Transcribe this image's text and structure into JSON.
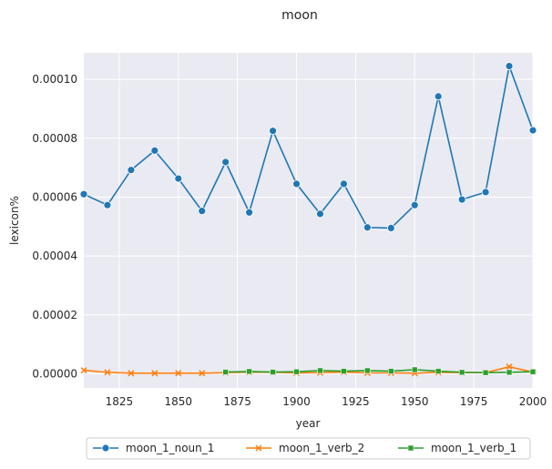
{
  "chart_data": {
    "type": "line",
    "title": "moon",
    "xlabel": "year",
    "ylabel": "lexicon%",
    "x": [
      1810,
      1820,
      1830,
      1840,
      1850,
      1860,
      1870,
      1880,
      1890,
      1900,
      1910,
      1920,
      1930,
      1940,
      1950,
      1960,
      1970,
      1980,
      1990,
      2000
    ],
    "xlim": [
      1810,
      2000
    ],
    "ylim": [
      -4.8e-06,
      0.000109
    ],
    "xticks": [
      1825,
      1850,
      1875,
      1900,
      1925,
      1950,
      1975,
      2000
    ],
    "yticks": [
      0,
      2e-05,
      4e-05,
      6e-05,
      8e-05,
      0.0001
    ],
    "ytick_labels": [
      "0.00000",
      "0.00002",
      "0.00004",
      "0.00006",
      "0.00008",
      "0.00010"
    ],
    "grid": true,
    "legend_position": "bottom-center",
    "series": [
      {
        "name": "moon_1_noun_1",
        "color": "#1f77b4",
        "marker": "circle",
        "values": [
          6.1e-05,
          5.73e-05,
          6.92e-05,
          7.58e-05,
          6.63e-05,
          5.53e-05,
          7.19e-05,
          5.48e-05,
          8.25e-05,
          6.45e-05,
          5.43e-05,
          6.45e-05,
          4.97e-05,
          4.95e-05,
          5.73e-05,
          9.42e-05,
          5.92e-05,
          6.17e-05,
          0.0001045,
          8.27e-05
        ]
      },
      {
        "name": "moon_1_verb_2",
        "color": "#ff7f0e",
        "marker": "x",
        "values": [
          1.2e-06,
          5e-07,
          2e-07,
          2e-07,
          2e-07,
          2e-07,
          4e-07,
          6e-07,
          5e-07,
          3e-07,
          4e-07,
          6e-07,
          3e-07,
          3e-07,
          2e-07,
          5e-07,
          4e-07,
          4e-07,
          2.4e-06,
          6e-07
        ]
      },
      {
        "name": "moon_1_verb_1",
        "color": "#2ca02c",
        "marker": "square",
        "x": [
          1870,
          1880,
          1890,
          1900,
          1910,
          1920,
          1930,
          1940,
          1950,
          1960,
          1970,
          1980,
          1990,
          2000
        ],
        "values": [
          6e-07,
          8e-07,
          6e-07,
          7e-07,
          1.1e-06,
          9e-07,
          1.1e-06,
          9e-07,
          1.4e-06,
          9e-07,
          5e-07,
          4e-07,
          5e-07,
          7e-07
        ]
      }
    ]
  }
}
